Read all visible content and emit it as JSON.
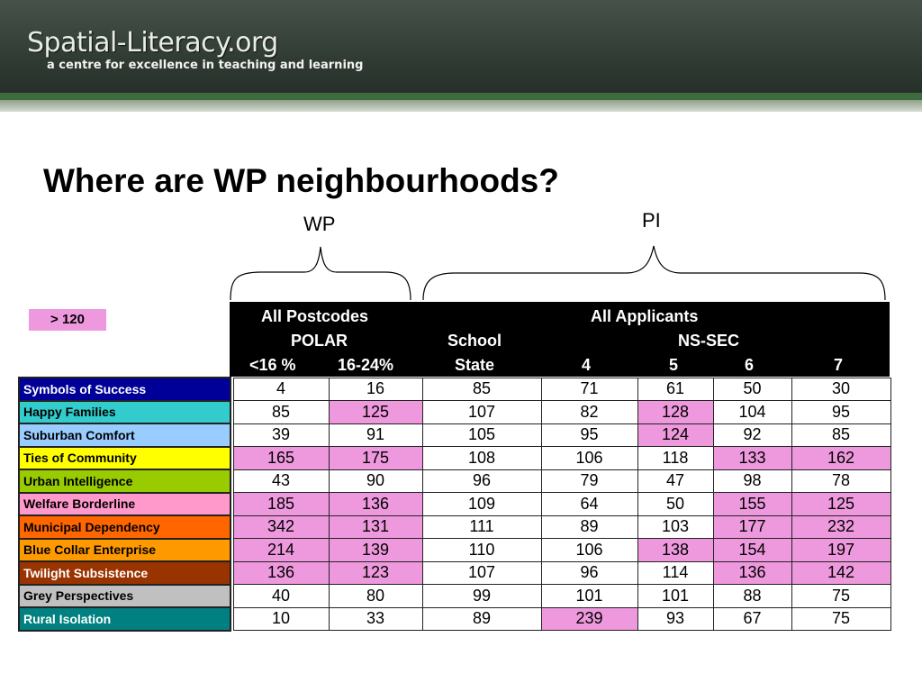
{
  "header": {
    "logo_title": "Spatial-Literacy.org",
    "logo_subtitle": "a centre for excellence in teaching and learning"
  },
  "slide": {
    "title": "Where are WP neighbourhoods?",
    "brace_wp": "WP",
    "brace_pi": "PI",
    "legend": "> 120",
    "highlight_color": "#ee99dd"
  },
  "table": {
    "header": {
      "all_postcodes": "All Postcodes",
      "polar": "POLAR",
      "all_applicants": "All Applicants",
      "school": "School",
      "state": "State",
      "nssec": "NS-SEC",
      "col_lt16": "<16 %",
      "col_1624": "16-24%",
      "col_4": "4",
      "col_5": "5",
      "col_6": "6",
      "col_7": "7"
    },
    "rows": [
      {
        "label": "Symbols of Success",
        "color": "#000099",
        "light_text": true,
        "values": [
          "4",
          "16",
          "85",
          "71",
          "61",
          "50",
          "30"
        ],
        "highlight": [
          false,
          false,
          false,
          false,
          false,
          false,
          false
        ]
      },
      {
        "label": "Happy Families",
        "color": "#33cccc",
        "light_text": false,
        "values": [
          "85",
          "125",
          "107",
          "82",
          "128",
          "104",
          "95"
        ],
        "highlight": [
          false,
          true,
          false,
          false,
          true,
          false,
          false
        ]
      },
      {
        "label": "Suburban Comfort",
        "color": "#99ccff",
        "light_text": false,
        "values": [
          "39",
          "91",
          "105",
          "95",
          "124",
          "92",
          "85"
        ],
        "highlight": [
          false,
          false,
          false,
          false,
          true,
          false,
          false
        ]
      },
      {
        "label": "Ties of Community",
        "color": "#ffff00",
        "light_text": false,
        "values": [
          "165",
          "175",
          "108",
          "106",
          "118",
          "133",
          "162"
        ],
        "highlight": [
          true,
          true,
          false,
          false,
          false,
          true,
          true
        ]
      },
      {
        "label": "Urban Intelligence",
        "color": "#99cc00",
        "light_text": false,
        "values": [
          "43",
          "90",
          "96",
          "79",
          "47",
          "98",
          "78"
        ],
        "highlight": [
          false,
          false,
          false,
          false,
          false,
          false,
          false
        ]
      },
      {
        "label": "Welfare Borderline",
        "color": "#ff99cc",
        "light_text": false,
        "values": [
          "185",
          "136",
          "109",
          "64",
          "50",
          "155",
          "125"
        ],
        "highlight": [
          true,
          true,
          false,
          false,
          false,
          true,
          true
        ]
      },
      {
        "label": "Municipal Dependency",
        "color": "#ff6600",
        "light_text": false,
        "values": [
          "342",
          "131",
          "111",
          "89",
          "103",
          "177",
          "232"
        ],
        "highlight": [
          true,
          true,
          false,
          false,
          false,
          true,
          true
        ]
      },
      {
        "label": "Blue Collar Enterprise",
        "color": "#ff9900",
        "light_text": false,
        "values": [
          "214",
          "139",
          "110",
          "106",
          "138",
          "154",
          "197"
        ],
        "highlight": [
          true,
          true,
          false,
          false,
          true,
          true,
          true
        ]
      },
      {
        "label": "Twilight Subsistence",
        "color": "#993300",
        "light_text": true,
        "values": [
          "136",
          "123",
          "107",
          "96",
          "114",
          "136",
          "142"
        ],
        "highlight": [
          true,
          true,
          false,
          false,
          false,
          true,
          true
        ]
      },
      {
        "label": "Grey Perspectives",
        "color": "#c0c0c0",
        "light_text": false,
        "values": [
          "40",
          "80",
          "99",
          "101",
          "101",
          "88",
          "75"
        ],
        "highlight": [
          false,
          false,
          false,
          false,
          false,
          false,
          false
        ]
      },
      {
        "label": "Rural Isolation",
        "color": "#008080",
        "light_text": true,
        "values": [
          "10",
          "33",
          "89",
          "239",
          "93",
          "67",
          "75"
        ],
        "highlight": [
          false,
          false,
          false,
          true,
          false,
          false,
          false
        ]
      }
    ]
  }
}
